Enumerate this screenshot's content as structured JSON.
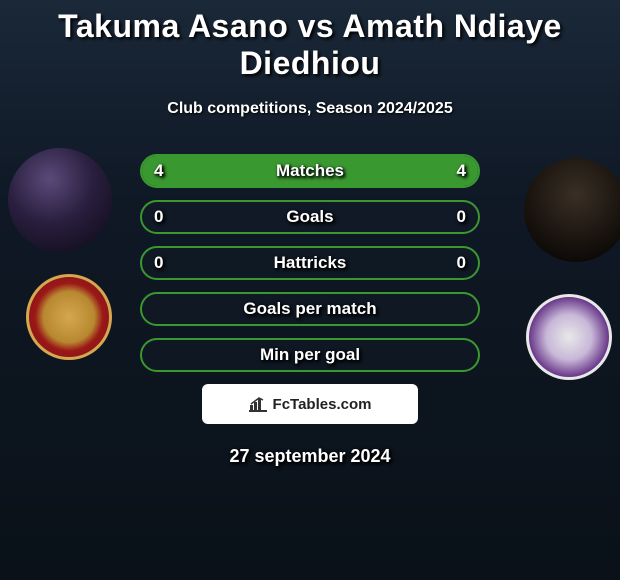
{
  "title": "Takuma Asano vs Amath Ndiaye Diedhiou",
  "subtitle": "Club competitions, Season 2024/2025",
  "date": "27 september 2024",
  "brand": "FcTables.com",
  "colors": {
    "bar_border": "#3a9830",
    "fill_left": "#3a9830",
    "fill_right": "#3a9830",
    "text_shadow": "#000000",
    "background_top": "#1a2838",
    "background_bottom": "#0a1118"
  },
  "typography": {
    "title_fontsize": 32,
    "subtitle_fontsize": 16,
    "bar_label_fontsize": 17,
    "date_fontsize": 18
  },
  "players": {
    "left": {
      "name": "Takuma Asano",
      "club": "Mallorca"
    },
    "right": {
      "name": "Amath Ndiaye Diedhiou",
      "club": "Valladolid"
    }
  },
  "bars": [
    {
      "label": "Matches",
      "left": "4",
      "right": "4",
      "left_val": 4,
      "right_val": 4,
      "max": 8,
      "fill_left_pct": 50,
      "fill_right_pct": 50
    },
    {
      "label": "Goals",
      "left": "0",
      "right": "0",
      "left_val": 0,
      "right_val": 0,
      "max": 1,
      "fill_left_pct": 0,
      "fill_right_pct": 0
    },
    {
      "label": "Hattricks",
      "left": "0",
      "right": "0",
      "left_val": 0,
      "right_val": 0,
      "max": 1,
      "fill_left_pct": 0,
      "fill_right_pct": 0
    },
    {
      "label": "Goals per match",
      "left": "",
      "right": "",
      "left_val": 0,
      "right_val": 0,
      "max": 1,
      "fill_left_pct": 0,
      "fill_right_pct": 0
    },
    {
      "label": "Min per goal",
      "left": "",
      "right": "",
      "left_val": 0,
      "right_val": 0,
      "max": 1,
      "fill_left_pct": 0,
      "fill_right_pct": 0
    }
  ]
}
